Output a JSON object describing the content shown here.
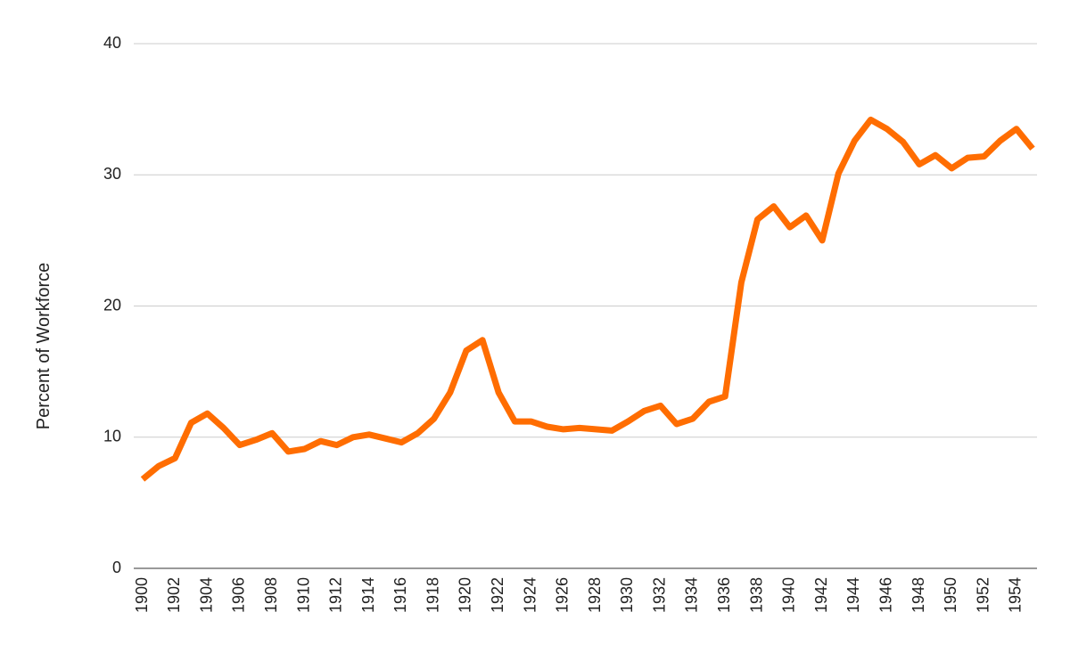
{
  "chart_data": {
    "type": "line",
    "title": "",
    "xlabel": "",
    "ylabel": "Percent of Workforce",
    "ylim": [
      0,
      40
    ],
    "yticks": [
      "0",
      "10",
      "20",
      "30",
      "40"
    ],
    "xticks": [
      "1900",
      "1902",
      "1904",
      "1906",
      "1908",
      "1910",
      "1912",
      "1914",
      "1916",
      "1918",
      "1920",
      "1922",
      "1924",
      "1926",
      "1928",
      "1930",
      "1932",
      "1934",
      "1936",
      "1938",
      "1940",
      "1942",
      "1944",
      "1946",
      "1948",
      "1950",
      "1952",
      "1954"
    ],
    "grid": true,
    "legend": "none",
    "x": [
      1900,
      1901,
      1902,
      1903,
      1904,
      1905,
      1906,
      1907,
      1908,
      1909,
      1910,
      1911,
      1912,
      1913,
      1914,
      1915,
      1916,
      1917,
      1918,
      1919,
      1920,
      1921,
      1922,
      1923,
      1924,
      1925,
      1926,
      1927,
      1928,
      1929,
      1930,
      1931,
      1932,
      1933,
      1934,
      1935,
      1936,
      1937,
      1938,
      1939,
      1940,
      1941,
      1942,
      1943,
      1944,
      1945,
      1946,
      1947,
      1948,
      1949,
      1950,
      1951,
      1952,
      1953,
      1954,
      1955
    ],
    "series": [
      {
        "color": "#ff6d01",
        "values": [
          6.8,
          7.8,
          8.4,
          11.1,
          11.8,
          10.7,
          9.4,
          9.8,
          10.3,
          8.9,
          9.1,
          9.7,
          9.4,
          10.0,
          10.2,
          9.9,
          9.6,
          10.3,
          11.4,
          13.4,
          16.6,
          17.4,
          13.4,
          11.2,
          11.2,
          10.8,
          10.6,
          10.7,
          10.6,
          10.5,
          11.2,
          12.0,
          12.4,
          11.0,
          11.4,
          12.7,
          13.1,
          21.8,
          26.6,
          27.6,
          26.0,
          26.9,
          25.0,
          30.1,
          32.6,
          34.2,
          33.5,
          32.5,
          30.8,
          31.5,
          30.5,
          31.3,
          31.4,
          32.6,
          33.5,
          32.0
        ]
      }
    ]
  }
}
